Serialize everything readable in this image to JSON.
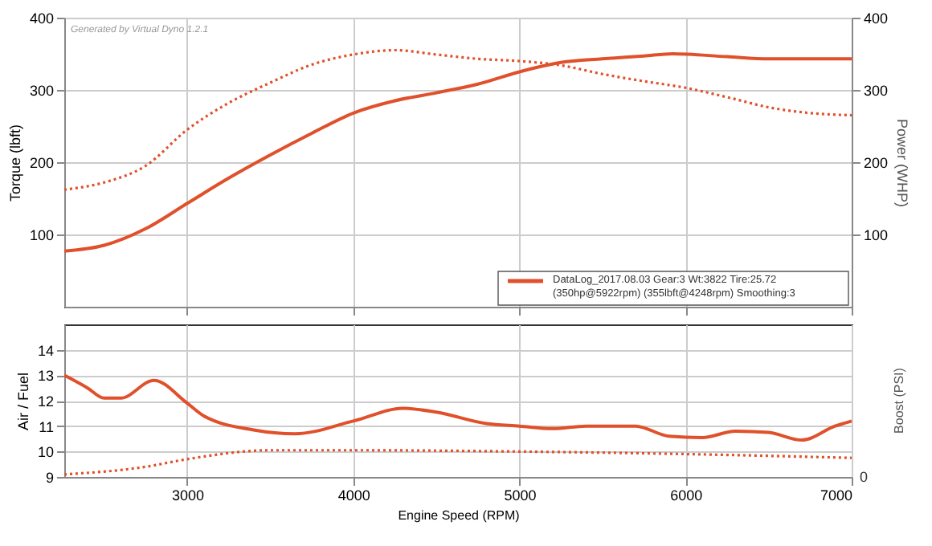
{
  "chart_data": [
    {
      "type": "line",
      "ylabel": "Torque (lbft)",
      "y2label": "Power (WHP)",
      "xlim": [
        2260,
        7000
      ],
      "xticks": [
        3000,
        4000,
        5000,
        6000,
        7000
      ],
      "ylim": [
        0,
        400
      ],
      "yticks": [
        100,
        200,
        300,
        400
      ],
      "y2lim": [
        0,
        400
      ],
      "y2ticks": [
        100,
        200,
        300,
        400
      ],
      "grid": true,
      "legend": "bottom right",
      "tick_labels": "y",
      "annotations": [
        "Generated by Virtual Dyno 1.2.1"
      ],
      "series": [
        {
          "color": "#e0502a",
          "line_style": "dotted",
          "x": [
            2260,
            2500,
            2750,
            3000,
            3250,
            3500,
            3750,
            4000,
            4250,
            4500,
            4750,
            5000,
            5250,
            5500,
            5750,
            6000,
            6250,
            6500,
            6750,
            7000
          ],
          "values": [
            162,
            172,
            195,
            245,
            282,
            310,
            335,
            349,
            355,
            349,
            343,
            340,
            334,
            322,
            312,
            303,
            290,
            276,
            268,
            265
          ]
        },
        {
          "name": "DataLog_2017.08.03 Gear:3 Wt:3822 Tire:25.72\n(350hp@5922rpm) (355lbft@4248rpm) Smoothing:3",
          "color": "#e0502a",
          "line_style": "solid",
          "axis": "y2",
          "x": [
            2260,
            2500,
            2750,
            3000,
            3250,
            3500,
            3750,
            4000,
            4250,
            4500,
            4750,
            5000,
            5250,
            5500,
            5750,
            5922,
            6250,
            6500,
            7000
          ],
          "values": [
            77,
            85,
            108,
            143,
            178,
            210,
            240,
            268,
            285,
            296,
            308,
            325,
            338,
            343,
            347,
            350,
            346,
            343,
            343
          ]
        }
      ]
    },
    {
      "type": "line",
      "xlabel": "Engine Speed (RPM)",
      "ylabel": "Air / Fuel",
      "y2label": "Boost (PSI)",
      "xlim": [
        2260,
        7000
      ],
      "xticks": [
        3000,
        4000,
        5000,
        6000,
        7000
      ],
      "ylim": [
        9,
        15
      ],
      "yticks": [
        9,
        10,
        11,
        12,
        13,
        14
      ],
      "grid": true,
      "annotations": [
        "0"
      ],
      "series": [
        {
          "color": "#e0502a",
          "line_style": "solid",
          "x": [
            2260,
            2400,
            2500,
            2600,
            2800,
            3000,
            3100,
            3400,
            3650,
            4000,
            4300,
            4500,
            4800,
            5000,
            5200,
            5400,
            5700,
            5900,
            6100,
            6300,
            6500,
            6700,
            6900,
            7000
          ],
          "values": [
            13.0,
            12.5,
            12.1,
            12.1,
            12.8,
            11.9,
            11.4,
            10.85,
            10.7,
            11.2,
            11.7,
            11.55,
            11.1,
            11.0,
            10.9,
            11.0,
            11.0,
            10.6,
            10.55,
            10.8,
            10.75,
            10.45,
            11.0,
            11.2
          ]
        },
        {
          "color": "#e0502a",
          "line_style": "dotted",
          "x": [
            2260,
            2750,
            3000,
            3500,
            4000,
            5000,
            6000,
            7000
          ],
          "values": [
            9.1,
            9.4,
            9.7,
            10.05,
            10.05,
            10.0,
            9.9,
            9.75
          ]
        }
      ]
    }
  ]
}
